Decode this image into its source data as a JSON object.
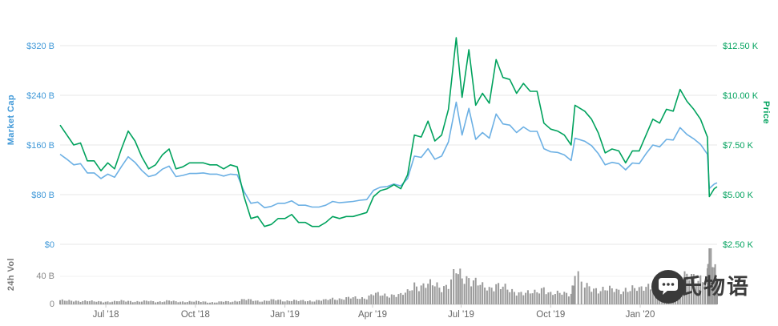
{
  "watermark": {
    "text": "凯氏物语",
    "icon": "chat-bubble-icon"
  },
  "colors": {
    "market_cap": "#6cb0e4",
    "price": "#00a25d",
    "volume": "#9a9a9a",
    "grid": "#e7e7e7",
    "axis_text": "#666666",
    "vol_axis_text": "#888888"
  },
  "chart_data": {
    "type": "line",
    "title": "",
    "grid": true,
    "legend": "none",
    "left_axis": {
      "title": "Market Cap",
      "range": [
        0,
        320
      ],
      "ticks": [
        {
          "label": "$0",
          "value": 0
        },
        {
          "label": "$80 B",
          "value": 80
        },
        {
          "label": "$160 B",
          "value": 160
        },
        {
          "label": "$240 B",
          "value": 240
        },
        {
          "label": "$320 B",
          "value": 320
        }
      ]
    },
    "right_axis": {
      "title": "Price",
      "range": [
        2.5,
        12.5
      ],
      "ticks": [
        {
          "label": "$2.50 K",
          "value": 2.5
        },
        {
          "label": "$5.00 K",
          "value": 5
        },
        {
          "label": "$7.50 K",
          "value": 7.5
        },
        {
          "label": "$10.00 K",
          "value": 10
        },
        {
          "label": "$12.50 K",
          "value": 12.5
        }
      ]
    },
    "volume_axis": {
      "title": "24h Vol",
      "range": [
        0,
        80
      ],
      "ticks": [
        {
          "label": "0",
          "value": 0
        },
        {
          "label": "40 B",
          "value": 40
        }
      ]
    },
    "x_ticks": [
      {
        "label": "Jul '18",
        "date": "2018-07-01"
      },
      {
        "label": "Oct '18",
        "date": "2018-10-01"
      },
      {
        "label": "Jan '19",
        "date": "2019-01-01"
      },
      {
        "label": "Apr '19",
        "date": "2019-04-01"
      },
      {
        "label": "Jul '19",
        "date": "2019-07-01"
      },
      {
        "label": "Oct '19",
        "date": "2019-10-01"
      },
      {
        "label": "Jan '20",
        "date": "2020-01-01"
      }
    ],
    "x": [
      "2018-05-15",
      "2018-05-22",
      "2018-05-29",
      "2018-06-05",
      "2018-06-12",
      "2018-06-19",
      "2018-06-26",
      "2018-07-03",
      "2018-07-10",
      "2018-07-17",
      "2018-07-24",
      "2018-07-31",
      "2018-08-07",
      "2018-08-14",
      "2018-08-21",
      "2018-08-28",
      "2018-09-04",
      "2018-09-11",
      "2018-09-18",
      "2018-09-25",
      "2018-10-02",
      "2018-10-09",
      "2018-10-16",
      "2018-10-23",
      "2018-10-30",
      "2018-11-06",
      "2018-11-13",
      "2018-11-20",
      "2018-11-27",
      "2018-12-04",
      "2018-12-11",
      "2018-12-18",
      "2018-12-25",
      "2019-01-01",
      "2019-01-08",
      "2019-01-15",
      "2019-01-22",
      "2019-01-29",
      "2019-02-05",
      "2019-02-12",
      "2019-02-19",
      "2019-02-26",
      "2019-03-05",
      "2019-03-12",
      "2019-03-19",
      "2019-03-26",
      "2019-04-02",
      "2019-04-09",
      "2019-04-16",
      "2019-04-23",
      "2019-04-30",
      "2019-05-07",
      "2019-05-14",
      "2019-05-21",
      "2019-05-28",
      "2019-06-04",
      "2019-06-11",
      "2019-06-18",
      "2019-06-26",
      "2019-07-02",
      "2019-07-09",
      "2019-07-16",
      "2019-07-23",
      "2019-07-30",
      "2019-08-06",
      "2019-08-13",
      "2019-08-20",
      "2019-08-27",
      "2019-09-03",
      "2019-09-10",
      "2019-09-17",
      "2019-09-24",
      "2019-10-01",
      "2019-10-08",
      "2019-10-15",
      "2019-10-22",
      "2019-10-26",
      "2019-11-05",
      "2019-11-12",
      "2019-11-19",
      "2019-11-26",
      "2019-12-03",
      "2019-12-10",
      "2019-12-17",
      "2019-12-24",
      "2019-12-31",
      "2020-01-07",
      "2020-01-14",
      "2020-01-21",
      "2020-01-28",
      "2020-02-04",
      "2020-02-11",
      "2020-02-18",
      "2020-02-25",
      "2020-03-03",
      "2020-03-10",
      "2020-03-12",
      "2020-03-17",
      "2020-03-20"
    ],
    "series": [
      {
        "name": "Market Cap",
        "type": "line",
        "axis": "left",
        "unit": "B USD",
        "color": "#6cb0e4",
        "values": [
          145,
          137,
          128,
          130,
          115,
          115,
          106,
          113,
          108,
          125,
          141,
          132,
          119,
          109,
          112,
          121,
          126,
          109,
          111,
          114,
          114,
          115,
          113,
          113,
          110,
          113,
          112,
          85,
          66,
          68,
          59,
          61,
          66,
          66,
          70,
          63,
          63,
          60,
          60,
          63,
          69,
          67,
          68,
          69,
          71,
          72,
          87,
          92,
          93,
          97,
          94,
          106,
          142,
          140,
          154,
          137,
          142,
          165,
          229,
          176,
          219,
          169,
          180,
          171,
          210,
          194,
          192,
          180,
          189,
          182,
          182,
          154,
          149,
          148,
          144,
          135,
          171,
          166,
          159,
          146,
          128,
          132,
          130,
          120,
          131,
          130,
          146,
          160,
          157,
          169,
          168,
          188,
          177,
          170,
          161,
          145,
          90,
          97,
          99
        ]
      },
      {
        "name": "Price",
        "type": "line",
        "axis": "right",
        "unit": "K USD",
        "color": "#00a25d",
        "values": [
          8.5,
          8.0,
          7.5,
          7.6,
          6.7,
          6.7,
          6.2,
          6.6,
          6.3,
          7.3,
          8.2,
          7.7,
          6.9,
          6.3,
          6.5,
          7.0,
          7.3,
          6.3,
          6.4,
          6.6,
          6.6,
          6.6,
          6.5,
          6.5,
          6.3,
          6.5,
          6.4,
          4.9,
          3.8,
          3.9,
          3.4,
          3.5,
          3.8,
          3.8,
          4.0,
          3.6,
          3.6,
          3.4,
          3.4,
          3.6,
          3.9,
          3.8,
          3.9,
          3.9,
          4.0,
          4.1,
          4.9,
          5.2,
          5.3,
          5.5,
          5.3,
          6.0,
          8.0,
          7.9,
          8.7,
          7.7,
          8.0,
          9.3,
          12.9,
          9.9,
          12.3,
          9.5,
          10.1,
          9.6,
          11.8,
          10.9,
          10.8,
          10.1,
          10.6,
          10.2,
          10.2,
          8.6,
          8.3,
          8.2,
          8.0,
          7.5,
          9.5,
          9.2,
          8.8,
          8.1,
          7.1,
          7.3,
          7.2,
          6.6,
          7.2,
          7.2,
          8.0,
          8.8,
          8.6,
          9.3,
          9.2,
          10.3,
          9.7,
          9.3,
          8.8,
          7.9,
          4.9,
          5.3,
          5.4
        ]
      },
      {
        "name": "24h Vol",
        "type": "bar",
        "axis": "volume",
        "unit": "B USD",
        "color": "#9a9a9a",
        "values": [
          6,
          5,
          5,
          5,
          5,
          4,
          4,
          4,
          4,
          5,
          5,
          4,
          4,
          5,
          4,
          4,
          5,
          4,
          4,
          4,
          4,
          4,
          3,
          3,
          4,
          4,
          5,
          7,
          6,
          5,
          5,
          6,
          6,
          5,
          6,
          5,
          5,
          5,
          6,
          6,
          8,
          8,
          9,
          9,
          9,
          10,
          15,
          13,
          13,
          14,
          13,
          17,
          29,
          26,
          27,
          28,
          25,
          28,
          45,
          38,
          39,
          32,
          24,
          22,
          30,
          25,
          18,
          17,
          18,
          16,
          16,
          24,
          16,
          15,
          15,
          16,
          45,
          25,
          22,
          22,
          22,
          20,
          19,
          22,
          22,
          20,
          26,
          30,
          27,
          28,
          32,
          40,
          38,
          36,
          38,
          45,
          75,
          52,
          46
        ]
      }
    ]
  }
}
